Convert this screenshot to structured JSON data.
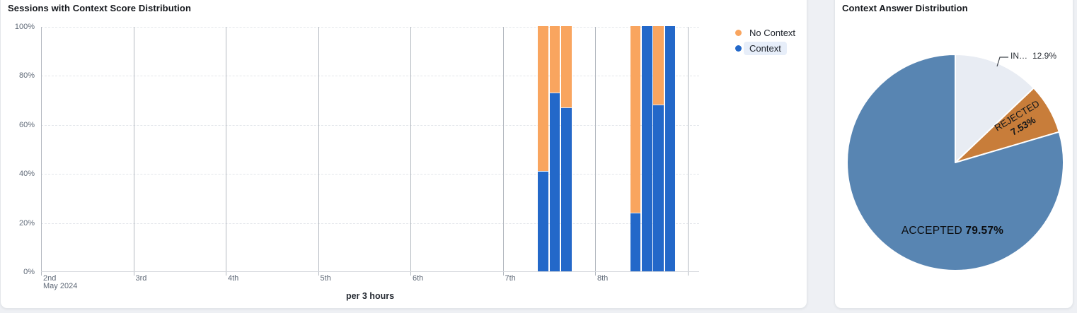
{
  "chart_data": [
    {
      "type": "bar",
      "stacked": true,
      "unit": "percent",
      "title": "Sessions with Context Score Distribution",
      "xlabel": "per 3 hours",
      "ylim": [
        0,
        100
      ],
      "y_ticks": [
        "0%",
        "20%",
        "40%",
        "60%",
        "80%",
        "100%"
      ],
      "x_days": [
        "2nd",
        "3rd",
        "4th",
        "5th",
        "6th",
        "7th",
        "8th"
      ],
      "x_first_day_sublabel": "May 2024",
      "slots_per_day": 8,
      "grid": {
        "vertical": "solid",
        "horizontal": "dashed"
      },
      "legend_position": "top-right",
      "legend": [
        {
          "name": "No Context",
          "color": "#f9a55f",
          "highlighted": false
        },
        {
          "name": "Context",
          "color": "#2368c9",
          "highlighted": true
        }
      ],
      "bars": [
        {
          "day": "7th",
          "slot": 3,
          "context_pct": 41,
          "no_context_pct": 59
        },
        {
          "day": "7th",
          "slot": 4,
          "context_pct": 73,
          "no_context_pct": 27
        },
        {
          "day": "7th",
          "slot": 5,
          "context_pct": 67,
          "no_context_pct": 33
        },
        {
          "day": "8th",
          "slot": 3,
          "context_pct": 24,
          "no_context_pct": 76
        },
        {
          "day": "8th",
          "slot": 4,
          "context_pct": 100,
          "no_context_pct": 0
        },
        {
          "day": "8th",
          "slot": 5,
          "context_pct": 68,
          "no_context_pct": 32
        },
        {
          "day": "8th",
          "slot": 6,
          "context_pct": 100,
          "no_context_pct": 0
        }
      ]
    },
    {
      "type": "pie",
      "title": "Context Answer Distribution",
      "start_angle": "top",
      "direction": "clockwise",
      "slices": [
        {
          "label": "IN…",
          "value": 12.9,
          "display": "12.9%",
          "color": "#e8ecf3",
          "label_placement": "outside-callout"
        },
        {
          "label": "REJECTED",
          "value": 7.53,
          "display": "7.53%",
          "color": "#c87d3a",
          "label_placement": "inside-rotated"
        },
        {
          "label": "ACCEPTED",
          "value": 79.57,
          "display": "79.57%",
          "color": "#5885b2",
          "label_placement": "inside"
        }
      ]
    }
  ]
}
